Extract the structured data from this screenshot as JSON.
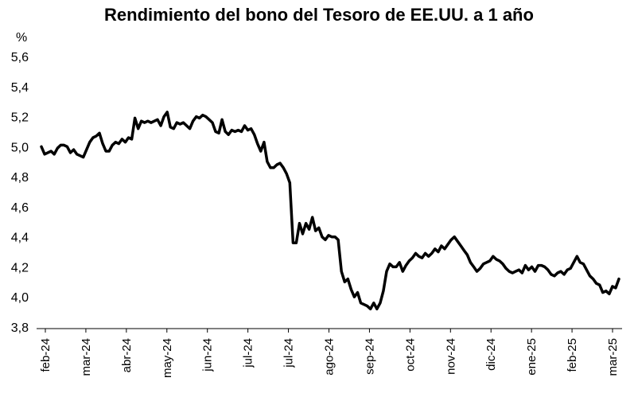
{
  "chart_data": {
    "type": "line",
    "title": "Rendimiento del bono del Tesoro de EE.UU. a 1 año",
    "ylabel": "%",
    "ylim": [
      3.8,
      5.6
    ],
    "y_ticks": [
      "5,6",
      "5,4",
      "5,2",
      "5,0",
      "4,8",
      "4,6",
      "4,4",
      "4,2",
      "4,0",
      "3,8"
    ],
    "x_ticks": [
      "feb-24",
      "mar-24",
      "abr-24",
      "may-24",
      "jun-24",
      "jul-24",
      "jul-24",
      "ago-24",
      "sep-24",
      "oct-24",
      "nov-24",
      "dic-24",
      "ene-25",
      "feb-25",
      "mar-25"
    ],
    "grid": false,
    "line_color": "#000000",
    "series": [
      {
        "values": [
          [
            0,
            5.0
          ],
          [
            1,
            4.95
          ],
          [
            2,
            4.96
          ],
          [
            3,
            4.97
          ],
          [
            4,
            4.95
          ],
          [
            5,
            4.99
          ],
          [
            6,
            5.01
          ],
          [
            7,
            5.01
          ],
          [
            8,
            5.0
          ],
          [
            9,
            4.96
          ],
          [
            10,
            4.98
          ],
          [
            11,
            4.95
          ],
          [
            12,
            4.94
          ],
          [
            13,
            4.93
          ],
          [
            14,
            4.98
          ],
          [
            15,
            5.03
          ],
          [
            16,
            5.06
          ],
          [
            17,
            5.07
          ],
          [
            18,
            5.09
          ],
          [
            19,
            5.02
          ],
          [
            20,
            4.97
          ],
          [
            21,
            4.97
          ],
          [
            22,
            5.01
          ],
          [
            23,
            5.03
          ],
          [
            24,
            5.02
          ],
          [
            25,
            5.05
          ],
          [
            26,
            5.03
          ],
          [
            27,
            5.06
          ],
          [
            28,
            5.05
          ],
          [
            29,
            5.19
          ],
          [
            30,
            5.12
          ],
          [
            31,
            5.17
          ],
          [
            32,
            5.16
          ],
          [
            33,
            5.17
          ],
          [
            34,
            5.16
          ],
          [
            35,
            5.17
          ],
          [
            36,
            5.18
          ],
          [
            37,
            5.14
          ],
          [
            38,
            5.2
          ],
          [
            39,
            5.23
          ],
          [
            40,
            5.13
          ],
          [
            41,
            5.12
          ],
          [
            42,
            5.16
          ],
          [
            43,
            5.15
          ],
          [
            44,
            5.16
          ],
          [
            45,
            5.14
          ],
          [
            46,
            5.12
          ],
          [
            47,
            5.17
          ],
          [
            48,
            5.2
          ],
          [
            49,
            5.19
          ],
          [
            50,
            5.21
          ],
          [
            51,
            5.2
          ],
          [
            52,
            5.18
          ],
          [
            53,
            5.16
          ],
          [
            54,
            5.1
          ],
          [
            55,
            5.09
          ],
          [
            56,
            5.18
          ],
          [
            57,
            5.1
          ],
          [
            58,
            5.08
          ],
          [
            59,
            5.11
          ],
          [
            60,
            5.1
          ],
          [
            61,
            5.11
          ],
          [
            62,
            5.1
          ],
          [
            63,
            5.14
          ],
          [
            64,
            5.11
          ],
          [
            65,
            5.12
          ],
          [
            66,
            5.08
          ],
          [
            67,
            5.02
          ],
          [
            68,
            4.97
          ],
          [
            69,
            5.03
          ],
          [
            70,
            4.9
          ],
          [
            71,
            4.86
          ],
          [
            72,
            4.86
          ],
          [
            73,
            4.88
          ],
          [
            74,
            4.89
          ],
          [
            75,
            4.86
          ],
          [
            76,
            4.82
          ],
          [
            77,
            4.76
          ],
          [
            78,
            4.36
          ],
          [
            79,
            4.36
          ],
          [
            80,
            4.49
          ],
          [
            81,
            4.42
          ],
          [
            82,
            4.49
          ],
          [
            83,
            4.45
          ],
          [
            84,
            4.53
          ],
          [
            85,
            4.44
          ],
          [
            86,
            4.46
          ],
          [
            87,
            4.4
          ],
          [
            88,
            4.38
          ],
          [
            89,
            4.41
          ],
          [
            90,
            4.4
          ],
          [
            91,
            4.4
          ],
          [
            92,
            4.38
          ],
          [
            93,
            4.17
          ],
          [
            94,
            4.1
          ],
          [
            95,
            4.12
          ],
          [
            96,
            4.05
          ],
          [
            97,
            4.0
          ],
          [
            98,
            4.03
          ],
          [
            99,
            3.96
          ],
          [
            100,
            3.95
          ],
          [
            101,
            3.94
          ],
          [
            102,
            3.92
          ],
          [
            103,
            3.96
          ],
          [
            104,
            3.92
          ],
          [
            105,
            3.96
          ],
          [
            106,
            4.04
          ],
          [
            107,
            4.17
          ],
          [
            108,
            4.22
          ],
          [
            109,
            4.2
          ],
          [
            110,
            4.2
          ],
          [
            111,
            4.23
          ],
          [
            112,
            4.17
          ],
          [
            113,
            4.21
          ],
          [
            114,
            4.24
          ],
          [
            115,
            4.26
          ],
          [
            116,
            4.29
          ],
          [
            117,
            4.27
          ],
          [
            118,
            4.26
          ],
          [
            119,
            4.29
          ],
          [
            120,
            4.27
          ],
          [
            121,
            4.29
          ],
          [
            122,
            4.32
          ],
          [
            123,
            4.3
          ],
          [
            124,
            4.34
          ],
          [
            125,
            4.32
          ],
          [
            126,
            4.35
          ],
          [
            127,
            4.38
          ],
          [
            128,
            4.4
          ],
          [
            129,
            4.37
          ],
          [
            130,
            4.34
          ],
          [
            131,
            4.31
          ],
          [
            132,
            4.28
          ],
          [
            133,
            4.23
          ],
          [
            134,
            4.2
          ],
          [
            135,
            4.17
          ],
          [
            136,
            4.19
          ],
          [
            137,
            4.22
          ],
          [
            138,
            4.23
          ],
          [
            139,
            4.24
          ],
          [
            140,
            4.27
          ],
          [
            141,
            4.25
          ],
          [
            142,
            4.24
          ],
          [
            143,
            4.22
          ],
          [
            144,
            4.19
          ],
          [
            145,
            4.17
          ],
          [
            146,
            4.16
          ],
          [
            147,
            4.17
          ],
          [
            148,
            4.18
          ],
          [
            149,
            4.16
          ],
          [
            150,
            4.21
          ],
          [
            151,
            4.18
          ],
          [
            152,
            4.2
          ],
          [
            153,
            4.17
          ],
          [
            154,
            4.21
          ],
          [
            155,
            4.21
          ],
          [
            156,
            4.2
          ],
          [
            157,
            4.18
          ],
          [
            158,
            4.15
          ],
          [
            159,
            4.14
          ],
          [
            160,
            4.16
          ],
          [
            161,
            4.17
          ],
          [
            162,
            4.15
          ],
          [
            163,
            4.18
          ],
          [
            164,
            4.19
          ],
          [
            165,
            4.23
          ],
          [
            166,
            4.27
          ],
          [
            167,
            4.23
          ],
          [
            168,
            4.22
          ],
          [
            169,
            4.18
          ],
          [
            170,
            4.14
          ],
          [
            171,
            4.12
          ],
          [
            172,
            4.09
          ],
          [
            173,
            4.08
          ],
          [
            174,
            4.03
          ],
          [
            175,
            4.04
          ],
          [
            176,
            4.02
          ],
          [
            177,
            4.07
          ],
          [
            178,
            4.06
          ],
          [
            179,
            4.12
          ]
        ]
      }
    ]
  }
}
